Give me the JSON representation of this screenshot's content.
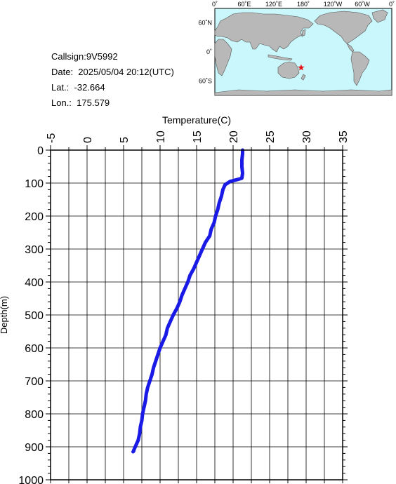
{
  "info": {
    "callsign": "Callsign:9V5992",
    "date": "Date:  2025/05/04 20:12(UTC)",
    "lat": "Lat.:  -32.664",
    "lon": "Lon.:  175.579"
  },
  "map": {
    "top_labels": [
      "0˚",
      "60˚E",
      "120˚E",
      "180˚",
      "120˚W",
      "60˚W",
      "0˚"
    ],
    "left_labels": [
      "60˚N",
      "0˚",
      "60˚S"
    ],
    "colors": {
      "ocean": "#c9f7fb",
      "land": "#b8b8b8",
      "marker": "#e8141a"
    },
    "marker": {
      "lat": -32.664,
      "lon": 175.579
    }
  },
  "chart_data": {
    "type": "line",
    "title": "",
    "xlabel": "Temperature(C)",
    "ylabel": "Depth(m)",
    "xlim": [
      -5,
      35
    ],
    "ylim": [
      1000,
      0
    ],
    "x_ticks": [
      "-5",
      "0",
      "5",
      "10",
      "15",
      "20",
      "25",
      "30",
      "35"
    ],
    "y_ticks": [
      "0",
      "100",
      "200",
      "300",
      "400",
      "500",
      "600",
      "700",
      "800",
      "900",
      "1000"
    ],
    "grid": true,
    "line_color": "#1a1ae6",
    "series": [
      {
        "x": [
          21.3,
          21.3,
          21.2,
          21.2,
          21.3,
          21.2,
          20.8,
          19.6,
          18.9,
          18.6,
          18.4,
          18.1,
          17.9,
          17.6,
          17.4,
          17.0,
          16.8,
          16.2,
          15.8,
          15.4,
          15.0,
          14.6,
          14.1,
          13.8,
          13.4,
          13.0,
          12.7,
          12.3,
          11.8,
          11.4,
          11.0,
          10.8,
          10.4,
          10.0,
          9.7,
          9.4,
          9.1,
          8.9,
          8.6,
          8.3,
          8.1,
          8.0,
          7.8,
          7.6,
          7.5,
          7.3,
          7.2,
          7.0,
          6.8,
          6.6,
          6.5,
          6.4,
          6.4,
          6.3
        ],
        "y": [
          0,
          10,
          30,
          50,
          70,
          85,
          88,
          95,
          105,
          120,
          140,
          160,
          180,
          200,
          220,
          240,
          260,
          280,
          300,
          320,
          340,
          360,
          380,
          400,
          420,
          440,
          460,
          480,
          500,
          520,
          540,
          560,
          580,
          600,
          620,
          640,
          660,
          680,
          700,
          720,
          740,
          760,
          780,
          800,
          820,
          840,
          860,
          880,
          890,
          900,
          905,
          910,
          912,
          915
        ]
      }
    ]
  }
}
